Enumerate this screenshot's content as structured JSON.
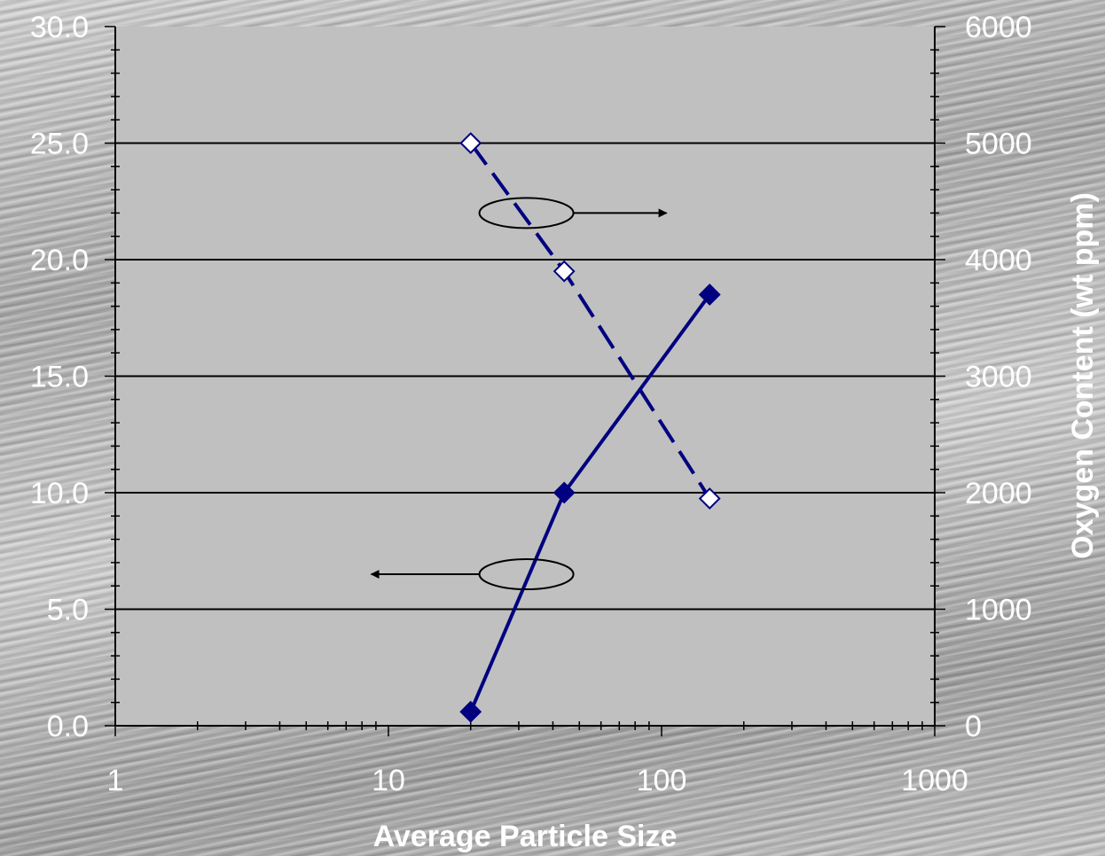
{
  "chart_data": {
    "type": "line",
    "xscale": "log",
    "xlim": [
      1,
      1000
    ],
    "x_ticks": [
      "1",
      "10",
      "100",
      "1000"
    ],
    "ylim_left": [
      0,
      30
    ],
    "y_left_ticks": [
      "0.0",
      "5.0",
      "10.0",
      "15.0",
      "20.0",
      "25.0",
      "30.0"
    ],
    "ylim_right": [
      0,
      6000
    ],
    "y_right_ticks": [
      "0",
      "1000",
      "2000",
      "3000",
      "4000",
      "5000",
      "6000"
    ],
    "xlabel": "Average Particle Size",
    "ylabel_left": "",
    "ylabel_right": "Oxygen Content (wt ppm)",
    "grid": "horizontal major lines",
    "plot_background": "#c0c0c0",
    "series": [
      {
        "axis": "left",
        "line_style": "solid",
        "marker": "filled-diamond",
        "color": "#000080",
        "x": [
          20,
          44,
          150
        ],
        "y": [
          0.6,
          10.0,
          18.5
        ]
      },
      {
        "axis": "right",
        "line_style": "dashed",
        "marker": "open-diamond",
        "color": "#000080",
        "x": [
          20,
          44,
          150
        ],
        "y": [
          5000,
          3900,
          1950
        ]
      }
    ],
    "annotations": [
      {
        "type": "ellipse-arrow",
        "direction": "right",
        "indicates": "right axis",
        "x": 32,
        "y_right": 4400
      },
      {
        "type": "ellipse-arrow",
        "direction": "left",
        "indicates": "left axis",
        "x": 32,
        "y_left": 6.5
      }
    ]
  }
}
